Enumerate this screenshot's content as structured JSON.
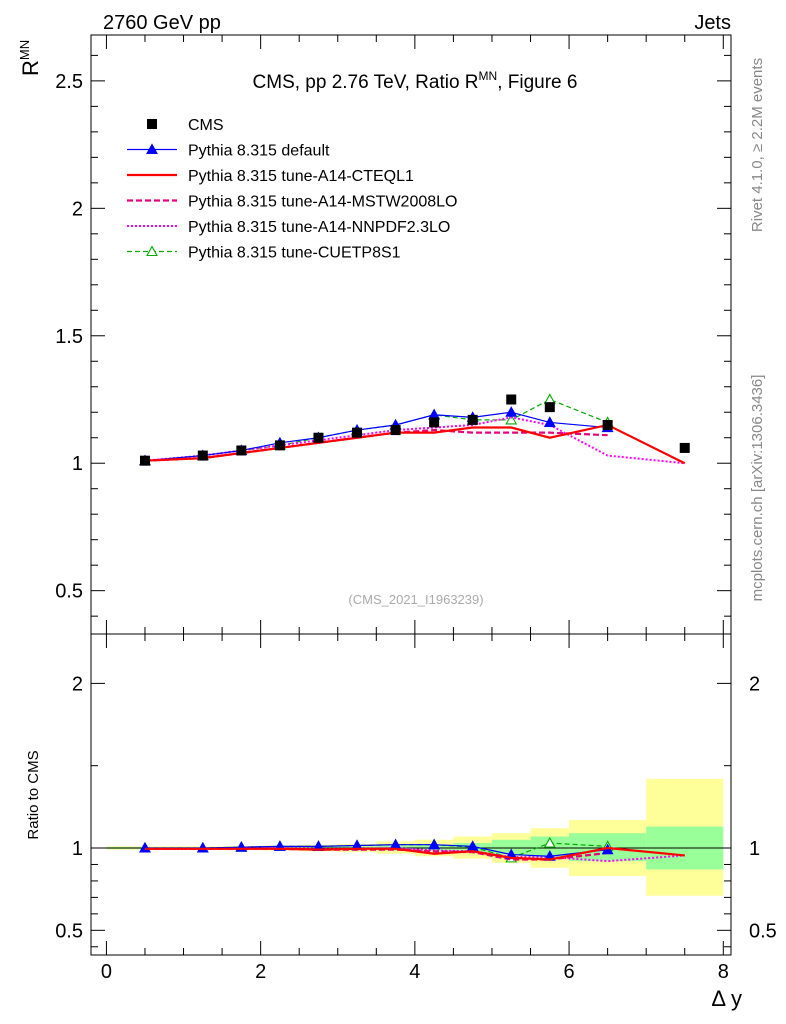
{
  "header": {
    "left": "2760 GeV pp",
    "right": "Jets"
  },
  "side": {
    "rivet": "Rivet 4.1.0, ≥ 2.2M events",
    "mcplots": "mcplots.cern.ch [arXiv:1306.3436]"
  },
  "watermark": "(CMS_2021_I1963239)",
  "colors": {
    "cms": "#000000",
    "default": "#0000ff",
    "cteql1": "#ff0000",
    "mstw": "#e6007a",
    "nnpdf": "#ff00ff",
    "cuetp8s1": "#00aa00",
    "band_inner": "#99ff99",
    "band_outer": "#ffff99"
  },
  "chart_data": [
    {
      "type": "line",
      "panel": "main",
      "title": "CMS, pp 2.76 TeV, Ratio R",
      "title_sup": "MN",
      "title_suffix": ", Figure 6",
      "ylabel": "R",
      "ylabel_sup": "MN",
      "xlim": [
        -0.2,
        8.1
      ],
      "ylim": [
        0.33,
        2.68
      ],
      "yticks": [
        0.5,
        1,
        1.5,
        2,
        2.5
      ],
      "ytick_labels": [
        "0.5",
        "1",
        "1.5",
        "2",
        "2.5"
      ],
      "legend_position": "top-left",
      "series": [
        {
          "name": "CMS",
          "key": "cms",
          "x": [
            0.5,
            1.25,
            1.75,
            2.25,
            2.75,
            3.25,
            3.75,
            4.25,
            4.75,
            5.25,
            5.75,
            6.5,
            7.5
          ],
          "y": [
            1.01,
            1.03,
            1.05,
            1.07,
            1.1,
            1.12,
            1.13,
            1.16,
            1.17,
            1.25,
            1.22,
            1.15,
            1.06
          ]
        },
        {
          "name": "Pythia 8.315 default",
          "key": "default",
          "x": [
            0.5,
            1.25,
            1.75,
            2.25,
            2.75,
            3.25,
            3.75,
            4.25,
            4.75,
            5.25,
            5.75,
            6.5
          ],
          "y": [
            1.01,
            1.03,
            1.05,
            1.08,
            1.1,
            1.13,
            1.15,
            1.19,
            1.18,
            1.2,
            1.16,
            1.14
          ]
        },
        {
          "name": "Pythia 8.315 tune-A14-CTEQL1",
          "key": "cteql1",
          "x": [
            0.5,
            1.25,
            1.75,
            2.25,
            2.75,
            3.25,
            3.75,
            4.25,
            4.75,
            5.25,
            5.75,
            6.5,
            7.5
          ],
          "y": [
            1.01,
            1.02,
            1.04,
            1.06,
            1.08,
            1.1,
            1.12,
            1.12,
            1.14,
            1.14,
            1.1,
            1.15,
            1.0
          ]
        },
        {
          "name": "Pythia 8.315 tune-A14-MSTW2008LO",
          "key": "mstw",
          "x": [
            0.5,
            1.25,
            1.75,
            2.25,
            2.75,
            3.25,
            3.75,
            4.25,
            4.75,
            5.25,
            5.75,
            6.5
          ],
          "y": [
            1.01,
            1.02,
            1.04,
            1.06,
            1.08,
            1.1,
            1.12,
            1.13,
            1.12,
            1.12,
            1.12,
            1.11
          ]
        },
        {
          "name": "Pythia 8.315 tune-A14-NNPDF2.3LO",
          "key": "nnpdf",
          "x": [
            0.5,
            1.25,
            1.75,
            2.25,
            2.75,
            3.25,
            3.75,
            4.25,
            4.75,
            5.25,
            5.75,
            6.5,
            7.5
          ],
          "y": [
            1.01,
            1.03,
            1.05,
            1.07,
            1.09,
            1.11,
            1.13,
            1.14,
            1.15,
            1.18,
            1.15,
            1.03,
            1.0
          ]
        },
        {
          "name": "Pythia 8.315 tune-CUETP8S1",
          "key": "cuetp8s1",
          "x": [
            0.5,
            1.25,
            1.75,
            2.25,
            2.75,
            3.25,
            3.75,
            4.25,
            4.75,
            5.25,
            5.75,
            6.5
          ],
          "y": [
            1.01,
            1.03,
            1.05,
            1.07,
            1.1,
            1.13,
            1.15,
            1.19,
            1.17,
            1.17,
            1.25,
            1.16
          ]
        }
      ]
    },
    {
      "type": "line",
      "panel": "ratio",
      "ylabel": "Ratio to CMS",
      "xlabel": "Δ y",
      "xlim": [
        -0.2,
        8.1
      ],
      "ylim": [
        0.35,
        2.3
      ],
      "yticks": [
        0.5,
        1,
        2
      ],
      "ytick_labels": [
        "0.5",
        "1",
        "2"
      ],
      "xticks": [
        0,
        2,
        4,
        6,
        8
      ],
      "xtick_labels": [
        "0",
        "2",
        "4",
        "6",
        "8"
      ],
      "bands": {
        "bins": [
          [
            0.0,
            1.0
          ],
          [
            1.0,
            1.5
          ],
          [
            1.5,
            2.0
          ],
          [
            2.0,
            2.5
          ],
          [
            2.5,
            3.0
          ],
          [
            3.0,
            3.5
          ],
          [
            3.5,
            4.0
          ],
          [
            4.0,
            4.5
          ],
          [
            4.5,
            5.0
          ],
          [
            5.0,
            5.5
          ],
          [
            5.5,
            6.0
          ],
          [
            6.0,
            7.0
          ],
          [
            7.0,
            8.0
          ]
        ],
        "inner_lo": [
          0.995,
          0.995,
          0.993,
          0.992,
          0.99,
          0.99,
          0.985,
          0.98,
          0.975,
          0.96,
          0.94,
          0.92,
          0.87
        ],
        "inner_hi": [
          1.005,
          1.005,
          1.007,
          1.008,
          1.01,
          1.01,
          1.015,
          1.02,
          1.03,
          1.05,
          1.07,
          1.09,
          1.13
        ],
        "outer_lo": [
          0.99,
          0.99,
          0.988,
          0.985,
          0.98,
          0.975,
          0.965,
          0.95,
          0.935,
          0.91,
          0.88,
          0.83,
          0.71
        ],
        "outer_hi": [
          1.01,
          1.01,
          1.012,
          1.015,
          1.02,
          1.025,
          1.04,
          1.05,
          1.07,
          1.09,
          1.12,
          1.17,
          1.42
        ]
      },
      "series": [
        {
          "name": "Pythia 8.315 default",
          "key": "default",
          "x": [
            0.5,
            1.25,
            1.75,
            2.25,
            2.75,
            3.25,
            3.75,
            4.25,
            4.75,
            5.25,
            5.75,
            6.5
          ],
          "y": [
            1.0,
            1.0,
            1.005,
            1.01,
            1.01,
            1.015,
            1.02,
            1.02,
            1.01,
            0.96,
            0.95,
            0.99
          ]
        },
        {
          "name": "Pythia 8.315 tune-A14-CTEQL1",
          "key": "cteql1",
          "x": [
            0.5,
            1.25,
            1.75,
            2.25,
            2.75,
            3.25,
            3.75,
            4.25,
            4.75,
            5.25,
            5.75,
            6.5,
            7.5
          ],
          "y": [
            0.995,
            0.995,
            0.995,
            0.995,
            0.99,
            0.995,
            0.995,
            0.965,
            0.98,
            0.94,
            0.93,
            1.0,
            0.955
          ]
        },
        {
          "name": "Pythia 8.315 tune-A14-MSTW2008LO",
          "key": "mstw",
          "x": [
            0.5,
            1.25,
            1.75,
            2.25,
            2.75,
            3.25,
            3.75,
            4.25,
            4.75,
            5.25,
            5.75,
            6.5
          ],
          "y": [
            0.995,
            0.995,
            0.995,
            0.995,
            0.99,
            0.99,
            0.99,
            0.98,
            0.975,
            0.93,
            0.93,
            0.97
          ]
        },
        {
          "name": "Pythia 8.315 tune-A14-NNPDF2.3LO",
          "key": "nnpdf",
          "x": [
            0.5,
            1.25,
            1.75,
            2.25,
            2.75,
            3.25,
            3.75,
            4.25,
            4.75,
            5.25,
            5.75,
            6.5,
            7.5
          ],
          "y": [
            0.995,
            0.995,
            1.0,
            1.0,
            0.995,
            0.995,
            1.0,
            0.985,
            0.98,
            0.945,
            0.945,
            0.92,
            0.955
          ]
        },
        {
          "name": "Pythia 8.315 tune-CUETP8S1",
          "key": "cuetp8s1",
          "x": [
            0.5,
            1.25,
            1.75,
            2.25,
            2.75,
            3.25,
            3.75,
            4.25,
            4.75,
            5.25,
            5.75,
            6.5
          ],
          "y": [
            1.0,
            1.0,
            1.005,
            1.01,
            1.01,
            1.015,
            1.02,
            1.02,
            1.005,
            0.94,
            1.03,
            1.01
          ]
        }
      ]
    }
  ]
}
